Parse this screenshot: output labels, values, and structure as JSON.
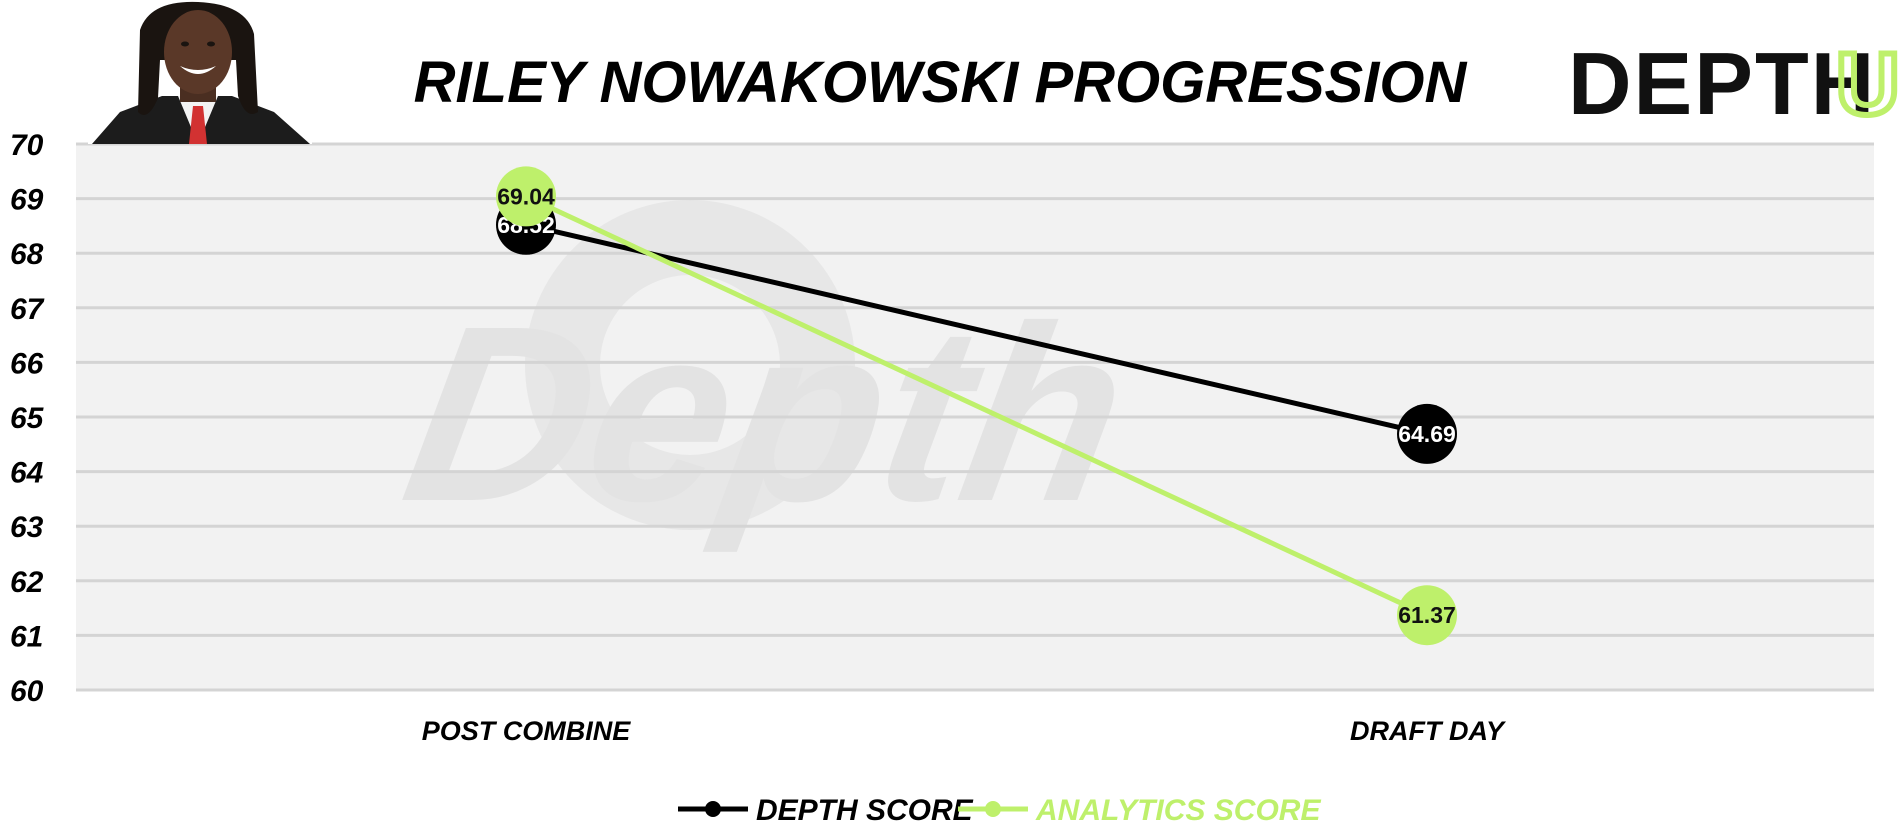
{
  "chart_data": {
    "type": "line",
    "title": "RILEY NOWAKOWSKI PROGRESSION",
    "categories": [
      "POST COMBINE",
      "DRAFT DAY"
    ],
    "ylim": [
      60,
      70
    ],
    "yticks": [
      70,
      69,
      68,
      67,
      66,
      65,
      64,
      63,
      62,
      61,
      60
    ],
    "grid": true,
    "legend_position": "bottom-center",
    "series": [
      {
        "name": "DEPTH SCORE",
        "color": "#000000",
        "label_color": "#ffffff",
        "values": [
          68.52,
          64.69
        ],
        "labels": [
          "68.52",
          "64.69"
        ]
      },
      {
        "name": "ANALYTICS SCORE",
        "color": "#bef06b",
        "label_color": "#111111",
        "values": [
          69.04,
          61.37
        ],
        "labels": [
          "69.04",
          "61.37"
        ]
      }
    ]
  },
  "brand": {
    "logo_main": "DEPTH",
    "logo_accent": "U",
    "logo_color": "#111111",
    "accent_color": "#bef06b",
    "watermark": "Depth"
  },
  "plot": {
    "background": "#f2f2f2",
    "grid_color": "#d4d4d4"
  },
  "photo": {
    "icon": "player-headshot-icon"
  }
}
